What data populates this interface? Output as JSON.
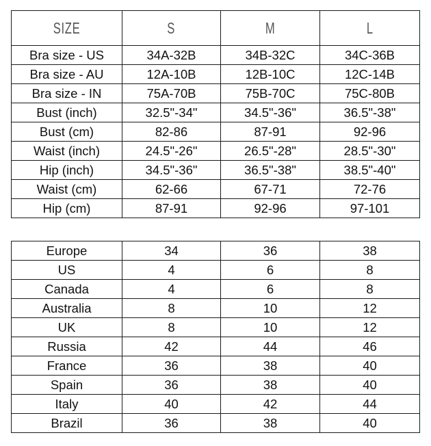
{
  "size_table": {
    "header": [
      "SIZE",
      "S",
      "M",
      "L"
    ],
    "rows": [
      [
        "Bra size - US",
        "34A-32B",
        "34B-32C",
        "34C-36B"
      ],
      [
        "Bra size - AU",
        "12A-10B",
        "12B-10C",
        "12C-14B"
      ],
      [
        "Bra size - IN",
        "75A-70B",
        "75B-70C",
        "75C-80B"
      ],
      [
        "Bust (inch)",
        "32.5\"-34\"",
        "34.5\"-36\"",
        "36.5\"-38\""
      ],
      [
        "Bust (cm)",
        "82-86",
        "87-91",
        "92-96"
      ],
      [
        "Waist (inch)",
        "24.5\"-26\"",
        "26.5\"-28\"",
        "28.5\"-30\""
      ],
      [
        "Hip (inch)",
        "34.5\"-36\"",
        "36.5\"-38\"",
        "38.5\"-40\""
      ],
      [
        "Waist (cm)",
        "62-66",
        "67-71",
        "72-76"
      ],
      [
        "Hip (cm)",
        "87-91",
        "92-96",
        "97-101"
      ]
    ]
  },
  "country_table": {
    "rows": [
      [
        "Europe",
        "34",
        "36",
        "38"
      ],
      [
        "US",
        "4",
        "6",
        "8"
      ],
      [
        "Canada",
        "4",
        "6",
        "8"
      ],
      [
        "Australia",
        "8",
        "10",
        "12"
      ],
      [
        "UK",
        "8",
        "10",
        "12"
      ],
      [
        "Russia",
        "42",
        "44",
        "46"
      ],
      [
        "France",
        "36",
        "38",
        "40"
      ],
      [
        "Spain",
        "36",
        "38",
        "40"
      ],
      [
        "Italy",
        "40",
        "42",
        "44"
      ],
      [
        "Brazil",
        "36",
        "38",
        "40"
      ]
    ]
  }
}
